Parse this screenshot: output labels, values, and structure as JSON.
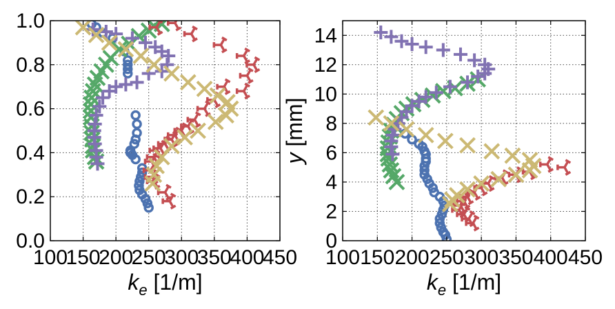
{
  "colors": {
    "blue": "#4C72B0",
    "green": "#55A868",
    "red": "#C44E52",
    "purple": "#8172B2",
    "gold": "#CCB974"
  },
  "chart_data": [
    {
      "type": "scatter",
      "xlabel": "k_e [1/m]",
      "xlabel_parts": {
        "main": "k",
        "sub": "e",
        "rest": " [1/m]"
      },
      "ylabel": "",
      "xlim": [
        100,
        450
      ],
      "ylim": [
        0.0,
        1.0
      ],
      "xticks": [
        "100",
        "150",
        "200",
        "250",
        "300",
        "350",
        "400",
        "450"
      ],
      "yticks": [
        "0.0",
        "0.2",
        "0.4",
        "0.6",
        "0.8",
        "1.0"
      ],
      "grid": true,
      "series": [
        {
          "marker": "circle",
          "color": "blue",
          "x": [
            163,
            170,
            180,
            195,
            213,
            218,
            218,
            218,
            218,
            230,
            232,
            232,
            230,
            228,
            222,
            222,
            225,
            230,
            240,
            240,
            238,
            236,
            235,
            236,
            240,
            245,
            248,
            250
          ],
          "y": [
            0.985,
            0.97,
            0.945,
            0.92,
            0.86,
            0.82,
            0.8,
            0.78,
            0.76,
            0.57,
            0.53,
            0.49,
            0.46,
            0.44,
            0.41,
            0.4,
            0.39,
            0.37,
            0.33,
            0.31,
            0.29,
            0.27,
            0.25,
            0.23,
            0.21,
            0.19,
            0.17,
            0.15
          ]
        },
        {
          "marker": "x",
          "color": "green",
          "x": [
            270,
            258,
            250,
            235,
            220,
            205,
            192,
            185,
            178,
            172,
            168,
            165,
            163,
            162,
            162,
            162,
            163,
            163,
            164,
            165,
            165,
            168,
            170
          ],
          "y": [
            0.985,
            0.975,
            0.955,
            0.93,
            0.895,
            0.87,
            0.83,
            0.8,
            0.77,
            0.74,
            0.71,
            0.68,
            0.65,
            0.62,
            0.59,
            0.56,
            0.52,
            0.49,
            0.46,
            0.43,
            0.41,
            0.38,
            0.36
          ]
        },
        {
          "marker": "tri",
          "color": "red",
          "x": [
            262,
            290,
            315,
            360,
            395,
            400,
            410,
            395,
            365,
            350,
            335,
            320,
            310,
            300,
            290,
            285,
            275,
            268,
            262,
            258,
            255,
            253,
            255,
            258,
            275,
            282
          ],
          "y": [
            0.97,
            0.99,
            0.94,
            0.89,
            0.84,
            0.75,
            0.8,
            0.68,
            0.7,
            0.64,
            0.6,
            0.55,
            0.52,
            0.5,
            0.48,
            0.46,
            0.44,
            0.42,
            0.41,
            0.38,
            0.36,
            0.32,
            0.29,
            0.27,
            0.22,
            0.18
          ]
        },
        {
          "marker": "plus",
          "color": "purple",
          "x": [
            165,
            185,
            200,
            225,
            245,
            260,
            270,
            280,
            278,
            270,
            250,
            232,
            215,
            200,
            190,
            180,
            175,
            170,
            168,
            167,
            167,
            168,
            170,
            170,
            172
          ],
          "y": [
            0.96,
            0.95,
            0.94,
            0.92,
            0.9,
            0.88,
            0.86,
            0.84,
            0.8,
            0.77,
            0.76,
            0.72,
            0.71,
            0.7,
            0.68,
            0.65,
            0.61,
            0.57,
            0.53,
            0.5,
            0.47,
            0.44,
            0.41,
            0.38,
            0.35
          ]
        },
        {
          "marker": "x",
          "color": "gold",
          "x": [
            150,
            170,
            190,
            215,
            238,
            258,
            285,
            310,
            335,
            355,
            370,
            375,
            368,
            352,
            325,
            305,
            285,
            270,
            262,
            258,
            256
          ],
          "y": [
            0.97,
            0.935,
            0.9,
            0.87,
            0.84,
            0.8,
            0.76,
            0.72,
            0.69,
            0.66,
            0.63,
            0.6,
            0.57,
            0.54,
            0.5,
            0.47,
            0.43,
            0.38,
            0.34,
            0.3,
            0.26
          ]
        }
      ]
    },
    {
      "type": "scatter",
      "xlabel": "k_e [1/m]",
      "xlabel_parts": {
        "main": "k",
        "sub": "e",
        "rest": " [1/m]"
      },
      "ylabel": "y [mm]",
      "ylabel_parts": {
        "main": "y",
        "rest": " [mm]"
      },
      "xlim": [
        100,
        450
      ],
      "ylim": [
        0,
        15
      ],
      "xticks": [
        "100",
        "150",
        "200",
        "250",
        "300",
        "350",
        "400",
        "450"
      ],
      "yticks": [
        "0",
        "2",
        "4",
        "6",
        "8",
        "10",
        "12",
        "14"
      ],
      "grid": true,
      "series": [
        {
          "marker": "circle",
          "color": "blue",
          "x": [
            190,
            200,
            210,
            215,
            218,
            220,
            220,
            220,
            218,
            218,
            218,
            222,
            225,
            230,
            232,
            240,
            245,
            247,
            245,
            243,
            240,
            240,
            242,
            245,
            248,
            250
          ],
          "y": [
            7.3,
            6.9,
            6.6,
            6.4,
            6.1,
            5.9,
            5.6,
            5.4,
            5.1,
            4.8,
            4.5,
            4.2,
            3.9,
            3.6,
            3.3,
            3.0,
            2.7,
            2.4,
            2.1,
            1.8,
            1.5,
            1.2,
            0.9,
            0.6,
            0.4,
            0.1
          ]
        },
        {
          "marker": "x",
          "color": "green",
          "x": [
            295,
            280,
            262,
            245,
            230,
            215,
            202,
            192,
            185,
            178,
            174,
            170,
            168,
            166,
            165,
            165,
            166,
            168,
            170,
            173,
            178
          ],
          "y": [
            11.0,
            10.7,
            10.4,
            10.2,
            9.9,
            9.6,
            9.3,
            9.0,
            8.7,
            8.3,
            7.9,
            7.5,
            7.1,
            6.7,
            6.3,
            5.9,
            5.6,
            5.2,
            4.8,
            4.4,
            4.0
          ]
        },
        {
          "marker": "tri",
          "color": "red",
          "x": [
            420,
            395,
            370,
            350,
            330,
            310,
            300,
            290,
            280,
            275,
            270,
            268,
            275,
            282,
            288
          ],
          "y": [
            5.0,
            5.2,
            4.7,
            4.5,
            4.3,
            3.9,
            3.6,
            3.3,
            3.0,
            2.7,
            2.4,
            2.1,
            1.8,
            1.5,
            1.2
          ]
        },
        {
          "marker": "plus",
          "color": "purple",
          "x": [
            155,
            170,
            185,
            200,
            220,
            245,
            270,
            290,
            305,
            310,
            305,
            295,
            280,
            255,
            235,
            220,
            210,
            200,
            192,
            185,
            180,
            175,
            172,
            170,
            170,
            172
          ],
          "y": [
            14.2,
            13.9,
            13.6,
            13.4,
            13.2,
            13.0,
            12.7,
            12.3,
            12.0,
            11.7,
            11.4,
            11.2,
            10.8,
            10.5,
            10.1,
            9.8,
            9.5,
            9.2,
            8.8,
            8.4,
            8.0,
            7.6,
            7.2,
            6.8,
            6.4,
            5.9
          ]
        },
        {
          "marker": "x",
          "color": "gold",
          "x": [
            148,
            170,
            192,
            220,
            248,
            280,
            315,
            345,
            370,
            375,
            370,
            350,
            325,
            300,
            280,
            265,
            258,
            255
          ],
          "y": [
            8.4,
            8.0,
            7.6,
            7.2,
            6.8,
            6.5,
            6.1,
            5.8,
            5.5,
            5.1,
            4.8,
            4.5,
            4.2,
            3.9,
            3.5,
            3.1,
            2.8,
            2.5
          ]
        }
      ]
    }
  ]
}
